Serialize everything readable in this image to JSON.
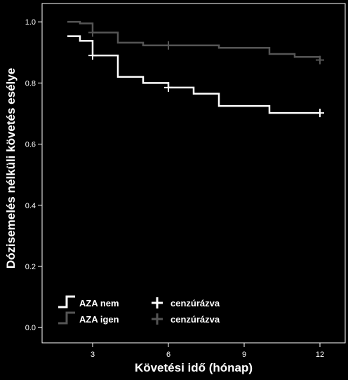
{
  "chart_data": {
    "type": "line",
    "step": true,
    "xlabel": "Követési idő (hónap)",
    "ylabel": "Dózisemelés nélküli követés esélye",
    "xlim": [
      1,
      13
    ],
    "ylim": [
      -0.05,
      1.06
    ],
    "xticks": [
      3,
      6,
      9,
      12
    ],
    "yticks": [
      0.0,
      0.2,
      0.4,
      0.6,
      0.8,
      1.0
    ],
    "ytick_labels": [
      "0.0",
      "0.2",
      "0.4",
      "0.6",
      "0.8",
      "1.0"
    ],
    "grid": false,
    "legend_position": "bottom-left",
    "series": [
      {
        "name": "AZA nem",
        "color": "#ffffff",
        "x": [
          2,
          2.5,
          3,
          4,
          5,
          6,
          7,
          8,
          10,
          12
        ],
        "y": [
          0.953,
          0.938,
          0.89,
          0.82,
          0.8,
          0.785,
          0.765,
          0.725,
          0.702,
          0.702
        ],
        "censored": [
          {
            "x": 3,
            "y": 0.89
          },
          {
            "x": 6,
            "y": 0.785
          },
          {
            "x": 12,
            "y": 0.702
          }
        ]
      },
      {
        "name": "AZA igen",
        "color": "#555555",
        "x": [
          2,
          2.5,
          3,
          4,
          5,
          8,
          10,
          11,
          12
        ],
        "y": [
          1.0,
          0.995,
          0.965,
          0.932,
          0.923,
          0.915,
          0.895,
          0.885,
          0.875
        ],
        "censored": [
          {
            "x": 3,
            "y": 0.965
          },
          {
            "x": 6,
            "y": 0.923
          },
          {
            "x": 12,
            "y": 0.875
          }
        ]
      }
    ],
    "legend": {
      "series_labels": [
        "AZA nem",
        "AZA igen"
      ],
      "censor_labels": [
        "cenzúrázva",
        "cenzúrázva"
      ]
    }
  }
}
